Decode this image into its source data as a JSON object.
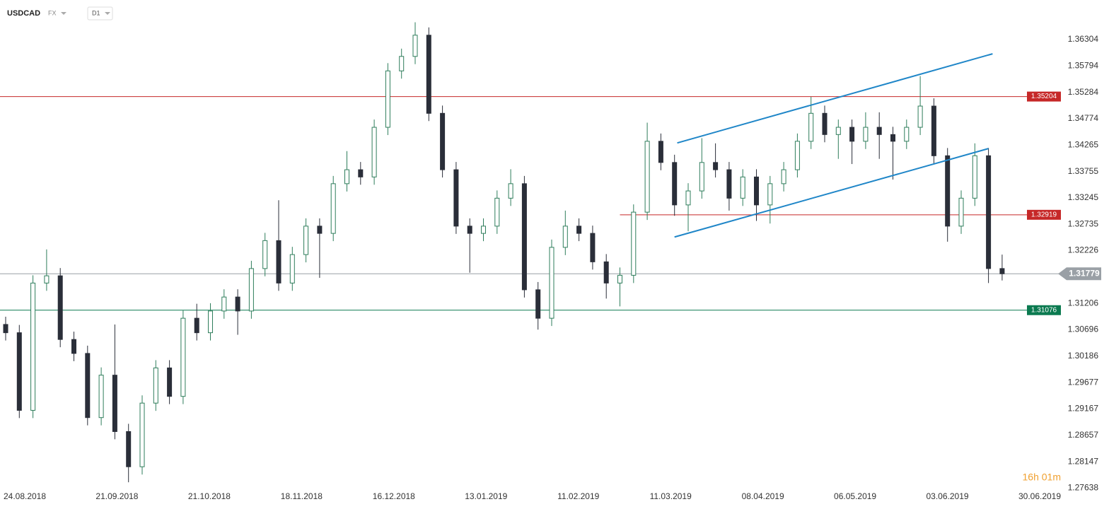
{
  "header": {
    "symbol": "USDCAD",
    "market": "FX",
    "interval": "D1",
    "countdown": "16h 01m"
  },
  "chart_data": {
    "type": "candlestick",
    "ylim": [
      1.2737,
      1.3707
    ],
    "yticks": [
      1.36304,
      1.35794,
      1.35284,
      1.34774,
      1.34265,
      1.33755,
      1.33245,
      1.32735,
      1.32226,
      1.31206,
      1.30696,
      1.30186,
      1.29677,
      1.29167,
      1.28657,
      1.28147,
      1.27638
    ],
    "x_labels": [
      "24.08.2018",
      "21.09.2018",
      "21.10.2018",
      "18.11.2018",
      "16.12.2018",
      "13.01.2019",
      "11.02.2019",
      "11.03.2019",
      "08.04.2019",
      "06.05.2019",
      "03.06.2019",
      "30.06.2019"
    ],
    "open": [
      1.308,
      1.3064,
      1.2914,
      1.316,
      1.3174,
      1.3051,
      1.3024,
      1.29,
      1.2982,
      1.2873,
      1.2805,
      1.2928,
      1.2996,
      1.2941,
      1.3092,
      1.3064,
      1.3106,
      1.3133,
      1.3106,
      1.3188,
      1.3242,
      1.316,
      1.3215,
      1.327,
      1.3256,
      1.3352,
      1.3379,
      1.3365,
      1.3461,
      1.357,
      1.3598,
      1.3639,
      1.3488,
      1.3379,
      1.327,
      1.3256,
      1.327,
      1.3324,
      1.3352,
      1.3147,
      1.3092,
      1.3229,
      1.327,
      1.3256,
      1.3201,
      1.316,
      1.3175,
      1.3297,
      1.3434,
      1.3393,
      1.3311,
      1.3338,
      1.3393,
      1.3379,
      1.3324,
      1.3365,
      1.3311,
      1.3352,
      1.3379,
      1.3434,
      1.3488,
      1.3447,
      1.3461,
      1.3434,
      1.3461,
      1.3447,
      1.3434,
      1.3461,
      1.3502,
      1.3406,
      1.327,
      1.3324,
      1.3406,
      1.3188
    ],
    "close": [
      1.3064,
      1.2914,
      1.316,
      1.3174,
      1.3051,
      1.3024,
      1.29,
      1.2982,
      1.2873,
      1.2805,
      1.2928,
      1.2996,
      1.2941,
      1.3092,
      1.3064,
      1.3106,
      1.3133,
      1.3106,
      1.3188,
      1.3242,
      1.316,
      1.3215,
      1.327,
      1.3256,
      1.3352,
      1.3379,
      1.3365,
      1.3461,
      1.357,
      1.3598,
      1.3639,
      1.3488,
      1.3379,
      1.327,
      1.3256,
      1.327,
      1.3324,
      1.3352,
      1.3147,
      1.3092,
      1.3229,
      1.327,
      1.3256,
      1.3201,
      1.316,
      1.3175,
      1.3297,
      1.3434,
      1.3393,
      1.3311,
      1.3338,
      1.3393,
      1.3379,
      1.3324,
      1.3365,
      1.3311,
      1.3352,
      1.3379,
      1.3434,
      1.3488,
      1.3447,
      1.3461,
      1.3434,
      1.3461,
      1.3447,
      1.3434,
      1.3461,
      1.3502,
      1.3406,
      1.327,
      1.3324,
      1.3406,
      1.3188,
      1.3178
    ],
    "high": [
      1.3095,
      1.3079,
      1.3175,
      1.3225,
      1.3189,
      1.3066,
      1.3039,
      1.2997,
      1.308,
      1.2888,
      1.2943,
      1.3011,
      1.3011,
      1.3107,
      1.312,
      1.3121,
      1.3148,
      1.3148,
      1.3203,
      1.3257,
      1.332,
      1.323,
      1.3285,
      1.3285,
      1.3367,
      1.3415,
      1.3394,
      1.3476,
      1.3585,
      1.3613,
      1.3664,
      1.3654,
      1.3503,
      1.3394,
      1.3285,
      1.3285,
      1.3339,
      1.338,
      1.3367,
      1.3162,
      1.3244,
      1.33,
      1.3285,
      1.3271,
      1.3216,
      1.319,
      1.3312,
      1.347,
      1.3449,
      1.3408,
      1.3353,
      1.344,
      1.343,
      1.3394,
      1.338,
      1.338,
      1.3367,
      1.3394,
      1.3449,
      1.352,
      1.3503,
      1.3476,
      1.3476,
      1.349,
      1.349,
      1.3462,
      1.3476,
      1.356,
      1.3517,
      1.3421,
      1.3339,
      1.343,
      1.3421,
      1.3215
    ],
    "low": [
      1.3049,
      1.2899,
      1.2899,
      1.3145,
      1.3036,
      1.3009,
      1.2885,
      1.2885,
      1.2858,
      1.2775,
      1.279,
      1.2913,
      1.2926,
      1.2926,
      1.3049,
      1.3049,
      1.3091,
      1.306,
      1.3091,
      1.3173,
      1.3145,
      1.3145,
      1.32,
      1.317,
      1.3241,
      1.3337,
      1.335,
      1.335,
      1.3446,
      1.3555,
      1.3583,
      1.3473,
      1.3364,
      1.3255,
      1.318,
      1.3241,
      1.3255,
      1.3309,
      1.3132,
      1.307,
      1.3077,
      1.3214,
      1.3241,
      1.3186,
      1.313,
      1.3115,
      1.316,
      1.3282,
      1.3378,
      1.329,
      1.326,
      1.3323,
      1.3364,
      1.33,
      1.3309,
      1.328,
      1.3275,
      1.3337,
      1.3364,
      1.3419,
      1.3432,
      1.34,
      1.339,
      1.3419,
      1.34,
      1.336,
      1.3419,
      1.3446,
      1.3391,
      1.324,
      1.3255,
      1.3309,
      1.316,
      1.3165
    ],
    "bull_color": "#2e7d5b",
    "bear_color": "#2a2e39",
    "levels": [
      {
        "value": 1.35204,
        "label": "1.35204",
        "color": "#c62828",
        "from": 0
      },
      {
        "value": 1.32919,
        "label": "1.32919",
        "color": "#c62828",
        "from": 45
      },
      {
        "value": 1.31076,
        "label": "1.31076",
        "color": "#0b7a50",
        "from": 0
      }
    ],
    "current": {
      "value": 1.31779,
      "label": "1.31779",
      "color": "#9aa0a6"
    },
    "trendlines": [
      {
        "x": [
          49.2,
          72.3
        ],
        "y": [
          1.34308,
          1.3603
        ],
        "color": "#1f86c8"
      },
      {
        "x": [
          49.0,
          72.0
        ],
        "y": [
          1.3249,
          1.34199
        ],
        "color": "#1f86c8"
      }
    ]
  }
}
